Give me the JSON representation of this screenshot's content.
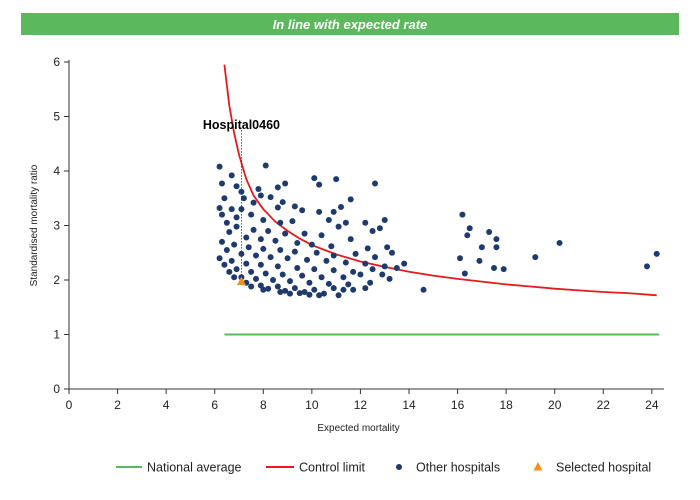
{
  "banner": {
    "text": "In line with expected rate",
    "color": "#5cb85c"
  },
  "chart_data": {
    "type": "scatter",
    "xlabel": "Expected mortality",
    "ylabel": "Standardised mortality ratio",
    "xlim": [
      0,
      24.5
    ],
    "ylim": [
      0,
      6
    ],
    "xticks": [
      0,
      2,
      4,
      6,
      8,
      10,
      12,
      14,
      16,
      18,
      20,
      22,
      24
    ],
    "yticks": [
      0,
      1,
      2,
      3,
      4,
      5,
      6
    ],
    "grid": false,
    "legend_position": "bottom",
    "colors": {
      "national": "#5cb85c",
      "control": "#e41a1c",
      "other": "#1f3a6e",
      "selected": "#f0901e"
    },
    "national_average": {
      "name": "National average",
      "y": 1,
      "x_range": [
        6.4,
        24.3
      ]
    },
    "control_limit": {
      "name": "Control limit",
      "points": [
        [
          6.4,
          5.95
        ],
        [
          6.6,
          5.2
        ],
        [
          6.8,
          4.7
        ],
        [
          7.0,
          4.3
        ],
        [
          7.3,
          3.85
        ],
        [
          7.6,
          3.55
        ],
        [
          8.0,
          3.3
        ],
        [
          8.5,
          3.07
        ],
        [
          9.0,
          2.9
        ],
        [
          9.5,
          2.76
        ],
        [
          10.0,
          2.64
        ],
        [
          11.0,
          2.47
        ],
        [
          12.0,
          2.34
        ],
        [
          13.0,
          2.24
        ],
        [
          14.0,
          2.15
        ],
        [
          15.0,
          2.08
        ],
        [
          16.0,
          2.02
        ],
        [
          17.0,
          1.97
        ],
        [
          18.0,
          1.92
        ],
        [
          19.0,
          1.88
        ],
        [
          20.0,
          1.84
        ],
        [
          21.0,
          1.81
        ],
        [
          22.0,
          1.78
        ],
        [
          23.0,
          1.76
        ],
        [
          24.2,
          1.72
        ]
      ]
    },
    "other_hospitals": {
      "name": "Other hospitals",
      "points": [
        [
          6.2,
          4.08
        ],
        [
          6.7,
          3.92
        ],
        [
          6.3,
          3.77
        ],
        [
          6.9,
          3.72
        ],
        [
          7.1,
          3.62
        ],
        [
          7.8,
          3.67
        ],
        [
          8.1,
          4.1
        ],
        [
          7.9,
          3.55
        ],
        [
          8.6,
          3.7
        ],
        [
          8.9,
          3.77
        ],
        [
          10.1,
          3.87
        ],
        [
          10.3,
          3.75
        ],
        [
          11.0,
          3.85
        ],
        [
          12.6,
          3.77
        ],
        [
          6.4,
          3.5
        ],
        [
          7.2,
          3.5
        ],
        [
          7.6,
          3.42
        ],
        [
          8.3,
          3.52
        ],
        [
          8.8,
          3.43
        ],
        [
          9.3,
          3.35
        ],
        [
          11.6,
          3.48
        ],
        [
          6.2,
          3.32
        ],
        [
          6.7,
          3.3
        ],
        [
          7.1,
          3.3
        ],
        [
          8.6,
          3.33
        ],
        [
          9.6,
          3.28
        ],
        [
          10.3,
          3.25
        ],
        [
          10.9,
          3.25
        ],
        [
          11.2,
          3.34
        ],
        [
          13.0,
          3.1
        ],
        [
          6.3,
          3.2
        ],
        [
          6.9,
          3.15
        ],
        [
          7.5,
          3.2
        ],
        [
          8.0,
          3.1
        ],
        [
          8.7,
          3.05
        ],
        [
          9.2,
          3.08
        ],
        [
          10.7,
          3.1
        ],
        [
          11.4,
          3.05
        ],
        [
          12.2,
          3.05
        ],
        [
          12.8,
          2.95
        ],
        [
          6.5,
          3.05
        ],
        [
          6.9,
          2.98
        ],
        [
          7.6,
          2.92
        ],
        [
          8.2,
          2.9
        ],
        [
          8.9,
          2.85
        ],
        [
          9.7,
          2.85
        ],
        [
          10.4,
          2.82
        ],
        [
          11.1,
          2.98
        ],
        [
          12.5,
          2.9
        ],
        [
          6.6,
          2.88
        ],
        [
          7.3,
          2.78
        ],
        [
          7.9,
          2.75
        ],
        [
          8.5,
          2.72
        ],
        [
          9.4,
          2.68
        ],
        [
          10.0,
          2.65
        ],
        [
          10.8,
          2.62
        ],
        [
          11.6,
          2.75
        ],
        [
          12.3,
          2.58
        ],
        [
          13.1,
          2.6
        ],
        [
          6.3,
          2.7
        ],
        [
          6.8,
          2.65
        ],
        [
          7.4,
          2.6
        ],
        [
          8.0,
          2.57
        ],
        [
          8.7,
          2.55
        ],
        [
          9.3,
          2.52
        ],
        [
          10.2,
          2.5
        ],
        [
          10.9,
          2.45
        ],
        [
          11.8,
          2.48
        ],
        [
          12.6,
          2.42
        ],
        [
          13.3,
          2.5
        ],
        [
          6.5,
          2.55
        ],
        [
          7.1,
          2.48
        ],
        [
          7.7,
          2.45
        ],
        [
          8.3,
          2.42
        ],
        [
          9.0,
          2.4
        ],
        [
          9.8,
          2.37
        ],
        [
          10.6,
          2.35
        ],
        [
          11.4,
          2.32
        ],
        [
          12.2,
          2.3
        ],
        [
          13.0,
          2.25
        ],
        [
          13.8,
          2.3
        ],
        [
          6.2,
          2.4
        ],
        [
          6.7,
          2.35
        ],
        [
          7.3,
          2.3
        ],
        [
          7.9,
          2.28
        ],
        [
          8.6,
          2.25
        ],
        [
          9.4,
          2.22
        ],
        [
          10.1,
          2.2
        ],
        [
          10.9,
          2.18
        ],
        [
          11.7,
          2.15
        ],
        [
          12.5,
          2.2
        ],
        [
          13.5,
          2.22
        ],
        [
          6.4,
          2.28
        ],
        [
          6.9,
          2.2
        ],
        [
          7.5,
          2.15
        ],
        [
          8.1,
          2.12
        ],
        [
          8.8,
          2.1
        ],
        [
          9.6,
          2.08
        ],
        [
          10.4,
          2.05
        ],
        [
          11.3,
          2.05
        ],
        [
          12.0,
          2.1
        ],
        [
          12.9,
          2.1
        ],
        [
          6.6,
          2.15
        ],
        [
          7.1,
          2.05
        ],
        [
          7.7,
          2.02
        ],
        [
          8.4,
          2.0
        ],
        [
          9.1,
          1.98
        ],
        [
          9.9,
          1.95
        ],
        [
          10.7,
          1.93
        ],
        [
          11.5,
          1.92
        ],
        [
          12.4,
          1.95
        ],
        [
          13.2,
          2.02
        ],
        [
          6.8,
          2.05
        ],
        [
          7.3,
          1.95
        ],
        [
          7.9,
          1.9
        ],
        [
          8.6,
          1.88
        ],
        [
          9.3,
          1.85
        ],
        [
          10.1,
          1.82
        ],
        [
          10.9,
          1.85
        ],
        [
          11.7,
          1.82
        ],
        [
          7.5,
          1.88
        ],
        [
          8.2,
          1.84
        ],
        [
          8.9,
          1.8
        ],
        [
          9.7,
          1.78
        ],
        [
          10.5,
          1.75
        ],
        [
          11.3,
          1.82
        ],
        [
          12.2,
          1.85
        ],
        [
          8.0,
          1.82
        ],
        [
          8.7,
          1.78
        ],
        [
          9.5,
          1.76
        ],
        [
          10.3,
          1.72
        ],
        [
          11.1,
          1.72
        ],
        [
          9.1,
          1.75
        ],
        [
          9.9,
          1.73
        ],
        [
          14.6,
          1.82
        ],
        [
          16.2,
          3.2
        ],
        [
          16.5,
          2.95
        ],
        [
          16.4,
          2.82
        ],
        [
          17.3,
          2.88
        ],
        [
          17.6,
          2.75
        ],
        [
          17.0,
          2.6
        ],
        [
          17.6,
          2.6
        ],
        [
          16.1,
          2.4
        ],
        [
          16.9,
          2.35
        ],
        [
          17.5,
          2.22
        ],
        [
          17.9,
          2.2
        ],
        [
          16.3,
          2.12
        ],
        [
          19.2,
          2.42
        ],
        [
          20.2,
          2.68
        ],
        [
          23.8,
          2.25
        ],
        [
          24.2,
          2.48
        ]
      ]
    },
    "selected_hospital": {
      "name": "Selected hospital",
      "label": "Hospital0460",
      "x": 7.1,
      "y": 1.97
    }
  }
}
